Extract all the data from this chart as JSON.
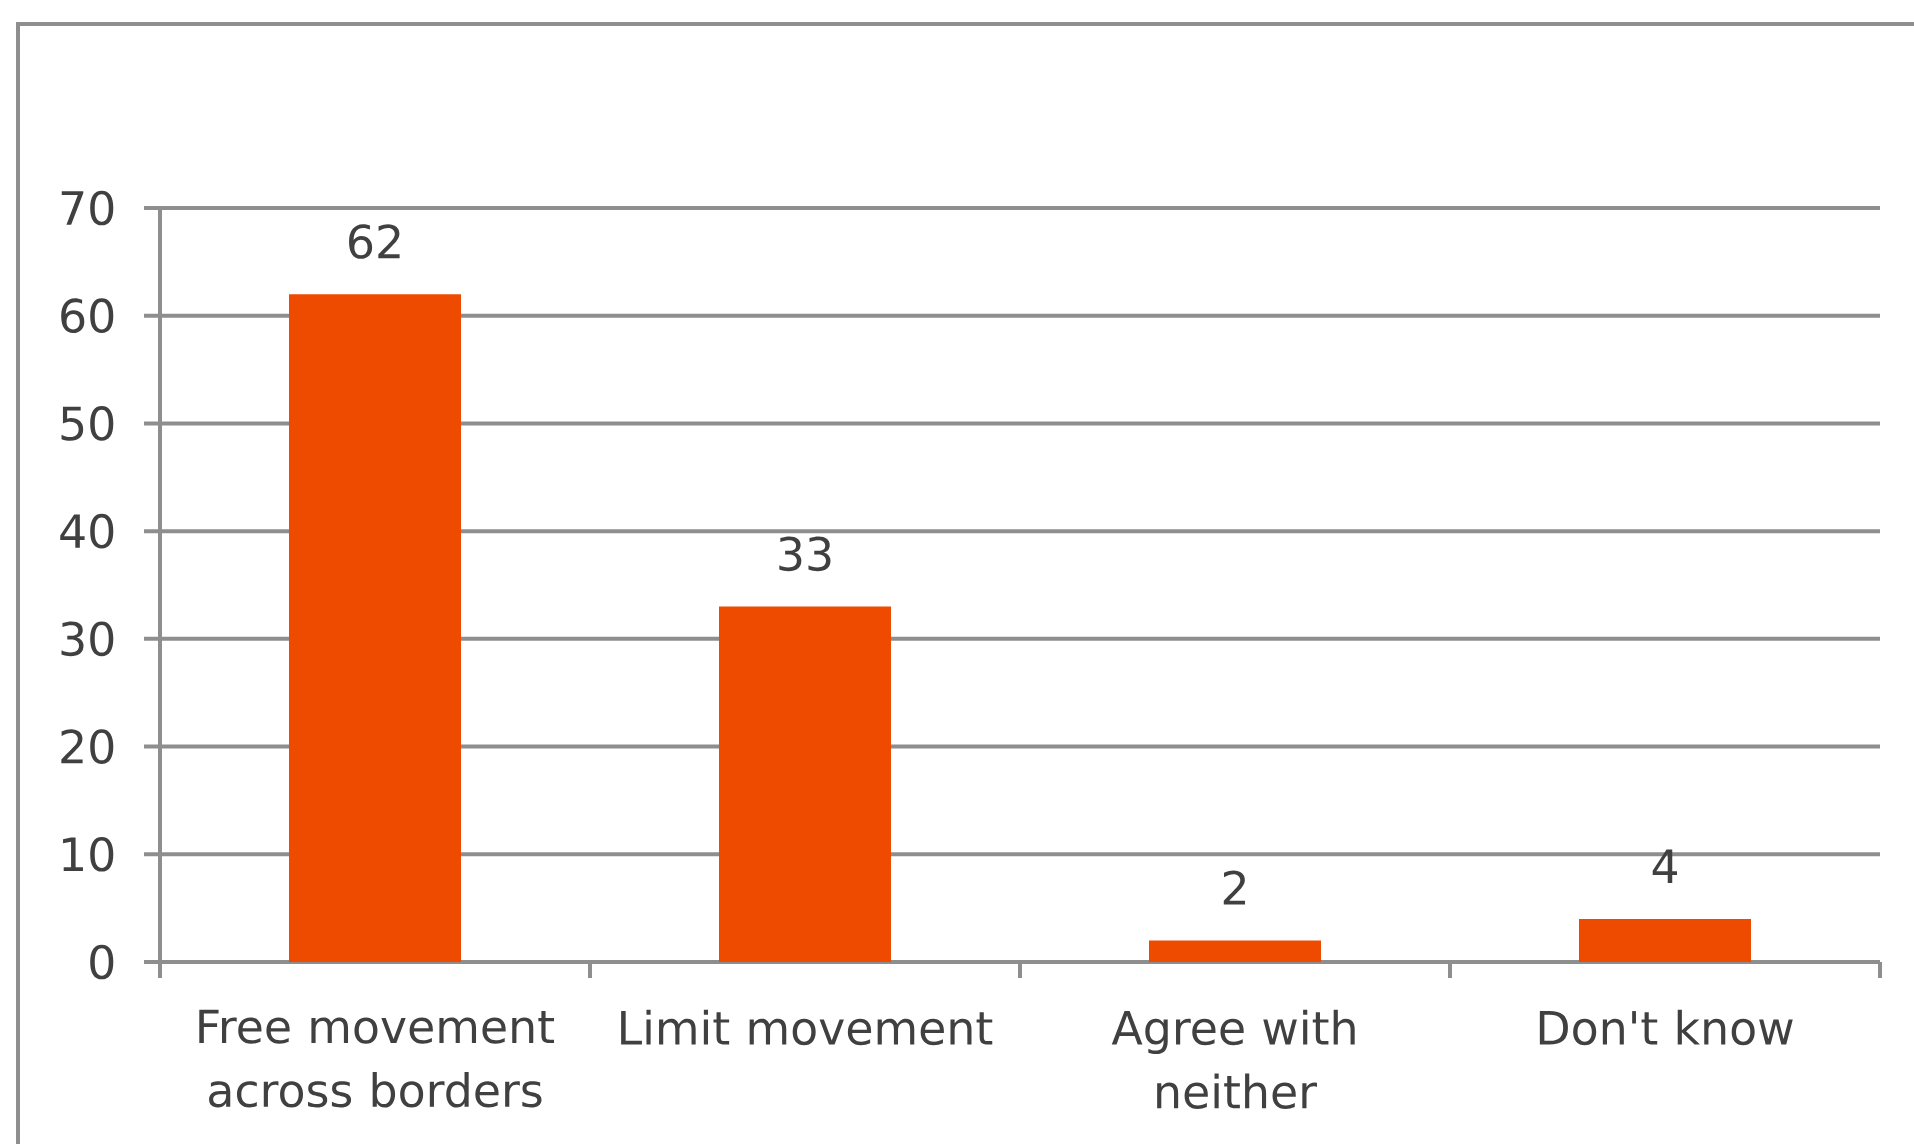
{
  "chart_data": {
    "type": "bar",
    "categories": [
      "Free movement across borders",
      "Limit movement",
      "Agree with neither",
      "Don't know"
    ],
    "values": [
      62,
      33,
      2,
      4
    ],
    "color": "#ee4a00",
    "ylim": [
      0,
      70
    ],
    "yticks": [
      0,
      10,
      20,
      30,
      40,
      50,
      60,
      70
    ],
    "grid": "y",
    "data_labels": true
  }
}
